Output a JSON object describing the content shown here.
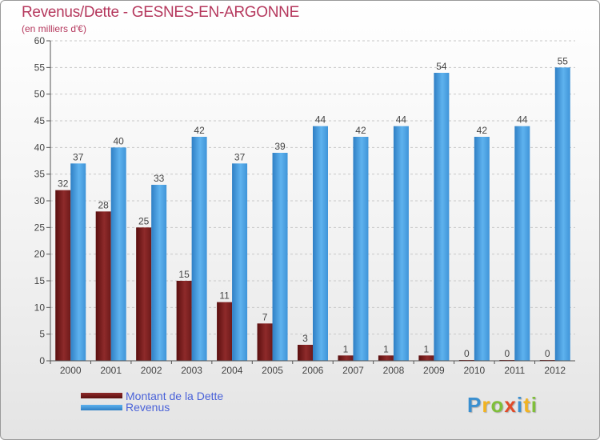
{
  "chart_data": {
    "type": "bar",
    "title": "Revenus/Dette - GESNES-EN-ARGONNE",
    "subtitle": "(en milliers d'€)",
    "xlabel": "",
    "ylabel": "",
    "categories": [
      "2000",
      "2001",
      "2002",
      "2003",
      "2004",
      "2005",
      "2006",
      "2007",
      "2008",
      "2009",
      "2010",
      "2011",
      "2012"
    ],
    "series": [
      {
        "name": "Montant de la Dette",
        "color": "#7a1e1e",
        "values": [
          32,
          28,
          25,
          15,
          11,
          7,
          3,
          1,
          1,
          1,
          0,
          0,
          0
        ]
      },
      {
        "name": "Revenus",
        "color": "#4aa3e6",
        "values": [
          37,
          40,
          33,
          42,
          37,
          39,
          44,
          42,
          44,
          54,
          42,
          44,
          55
        ]
      }
    ],
    "ylim": [
      0,
      60
    ],
    "yticks": [
      0,
      5,
      10,
      15,
      20,
      25,
      30,
      35,
      40,
      45,
      50,
      55,
      60
    ],
    "grid": true,
    "legend": "bottom-left"
  },
  "logo": {
    "letters": [
      "P",
      "r",
      "o",
      "x",
      "i",
      "t",
      "i"
    ],
    "colors": [
      "#3a8fd0",
      "#f2b320",
      "#7fbf3a",
      "#e04b2a",
      "#3a8fd0",
      "#f2b320",
      "#7fbf3a"
    ]
  }
}
